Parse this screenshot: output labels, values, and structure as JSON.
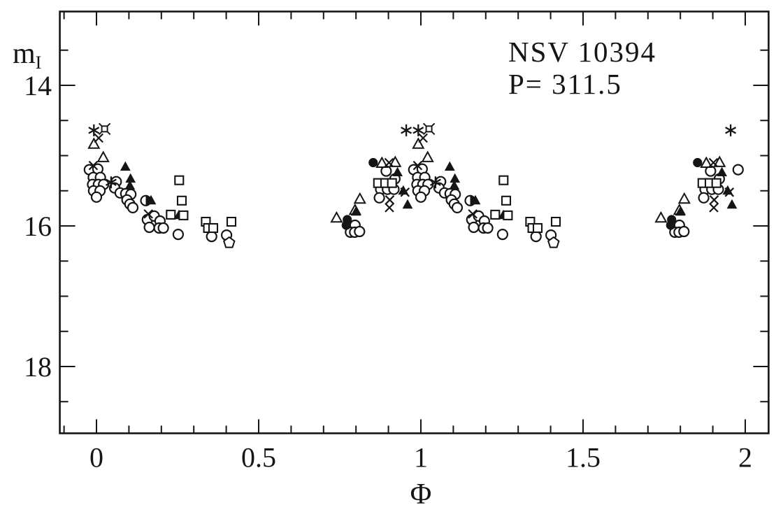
{
  "figure": {
    "annotation": {
      "line1": "NSV 10394",
      "line2": "P= 311.5"
    },
    "y_axis_label": {
      "main": "m",
      "sub": "I"
    },
    "x_axis_label": "Φ"
  },
  "chart_data": {
    "type": "scatter",
    "title": "NSV 10394",
    "period_label": "P= 311.5",
    "xlabel": "Φ",
    "ylabel": "m_I",
    "y_axis_inverted": true,
    "x_range": [
      -0.113,
      2.072
    ],
    "y_range": [
      12.95,
      18.95
    ],
    "x_ticks": [
      {
        "value": 0,
        "label": "0"
      },
      {
        "value": 0.5,
        "label": "0.5"
      },
      {
        "value": 1,
        "label": "1"
      },
      {
        "value": 1.5,
        "label": "1.5"
      },
      {
        "value": 2,
        "label": "2"
      }
    ],
    "y_ticks": [
      {
        "value": 14,
        "label": "14"
      },
      {
        "value": 16,
        "label": "16"
      },
      {
        "value": 18,
        "label": "18"
      }
    ],
    "x_minor_ticks": [
      -0.1,
      0.1,
      0.2,
      0.3,
      0.4,
      0.6,
      0.7,
      0.8,
      0.9,
      1.1,
      1.2,
      1.3,
      1.4,
      1.6,
      1.7,
      1.8,
      1.9
    ],
    "y_minor_ticks": [
      13.5,
      14.5,
      15.0,
      15.5,
      16.5,
      17.0,
      17.5,
      18.5
    ],
    "grid": false,
    "legend": "none",
    "phase_repeat_offsets": [
      -1,
      0,
      1
    ],
    "visible_phase_range": [
      -0.035,
      1.985
    ],
    "series": [
      {
        "name": "open-circle",
        "marker": "open-circle",
        "points": [
          [
            0.797,
            15.99
          ],
          [
            0.783,
            16.09
          ],
          [
            0.796,
            16.09
          ],
          [
            0.811,
            16.08
          ],
          [
            0.893,
            15.22
          ],
          [
            0.92,
            15.33
          ],
          [
            0.876,
            15.48
          ],
          [
            0.897,
            15.48
          ],
          [
            0.917,
            15.48
          ],
          [
            0.872,
            15.6
          ],
          [
            0.978,
            15.2
          ],
          [
            1.004,
            15.19
          ],
          [
            0.99,
            15.31
          ],
          [
            1.012,
            15.31
          ],
          [
            0.988,
            15.41
          ],
          [
            1.006,
            15.41
          ],
          [
            1.022,
            15.41
          ],
          [
            0.991,
            15.5
          ],
          [
            1.011,
            15.5
          ],
          [
            1.0,
            15.59
          ],
          [
            1.061,
            15.37
          ],
          [
            1.056,
            15.46
          ],
          [
            1.073,
            15.53
          ],
          [
            1.09,
            15.54
          ],
          [
            1.106,
            15.55
          ],
          [
            1.094,
            15.63
          ],
          [
            1.103,
            15.69
          ],
          [
            1.112,
            15.74
          ],
          [
            1.157,
            15.91
          ],
          [
            1.178,
            15.86
          ],
          [
            1.196,
            15.93
          ],
          [
            1.163,
            16.02
          ],
          [
            1.193,
            16.03
          ],
          [
            1.206,
            16.03
          ],
          [
            1.252,
            16.12
          ],
          [
            1.355,
            16.15
          ],
          [
            1.401,
            16.13
          ]
        ]
      },
      {
        "name": "filled-circle",
        "marker": "filled-circle",
        "points": [
          [
            0.773,
            15.91
          ],
          [
            0.77,
            15.99
          ],
          [
            0.853,
            15.1
          ]
        ]
      },
      {
        "name": "open-triangle",
        "marker": "open-triangle",
        "points": [
          [
            0.74,
            15.89
          ],
          [
            0.797,
            15.78
          ],
          [
            0.812,
            15.62
          ],
          [
            0.88,
            15.11
          ],
          [
            0.921,
            15.1
          ],
          [
            0.992,
            14.84
          ],
          [
            1.021,
            15.03
          ]
        ]
      },
      {
        "name": "filled-triangle",
        "marker": "filled-triangle",
        "points": [
          [
            0.8,
            15.8
          ],
          [
            0.928,
            15.24
          ],
          [
            0.946,
            15.5
          ],
          [
            0.959,
            15.7
          ],
          [
            1.089,
            15.16
          ],
          [
            1.105,
            15.33
          ],
          [
            1.103,
            15.43
          ],
          [
            1.168,
            15.64
          ],
          [
            1.254,
            15.85
          ]
        ]
      },
      {
        "name": "open-square",
        "marker": "open-square",
        "points": [
          [
            0.868,
            15.39
          ],
          [
            0.89,
            15.39
          ],
          [
            0.911,
            15.39
          ],
          [
            1.255,
            15.35
          ],
          [
            1.263,
            15.64
          ],
          [
            1.229,
            15.84
          ],
          [
            1.268,
            15.85
          ],
          [
            1.337,
            15.94
          ],
          [
            1.344,
            16.03
          ],
          [
            1.36,
            16.03
          ],
          [
            1.416,
            15.94
          ]
        ]
      },
      {
        "name": "cross",
        "marker": "cross",
        "points": [
          [
            0.902,
            15.1
          ],
          [
            0.904,
            15.63
          ],
          [
            0.903,
            15.74
          ],
          [
            0.951,
            15.52
          ],
          [
            1.007,
            14.75
          ],
          [
            0.99,
            15.14
          ],
          [
            1.16,
            15.83
          ]
        ]
      },
      {
        "name": "asterisk",
        "marker": "asterisk",
        "points": [
          [
            0.955,
            14.64
          ],
          [
            0.992,
            14.64
          ],
          [
            1.045,
            15.38
          ]
        ]
      },
      {
        "name": "square-burst",
        "marker": "square-burst",
        "points": [
          [
            1.025,
            14.62
          ]
        ]
      },
      {
        "name": "half-filled-circle",
        "marker": "half-filled-circle",
        "points": [
          [
            1.152,
            15.64
          ]
        ]
      },
      {
        "name": "open-pentagon",
        "marker": "open-pentagon",
        "points": [
          [
            1.409,
            16.24
          ]
        ]
      }
    ]
  }
}
